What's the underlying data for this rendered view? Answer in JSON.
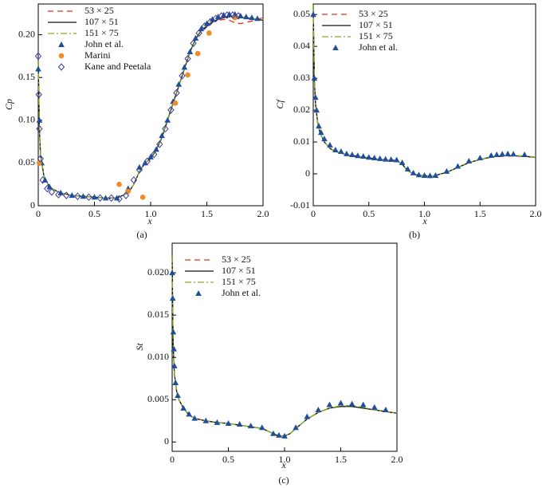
{
  "chart_data": [
    {
      "type": "line",
      "caption": "(a)",
      "x_label": "x",
      "y_label": "Cp",
      "xlim": [
        0,
        2
      ],
      "ylim": [
        0,
        0.236
      ],
      "xticks": [
        0,
        0.5,
        {
          "value": 1,
          "label": "1.0"
        },
        1.5,
        {
          "value": 2,
          "label": "2.0"
        }
      ],
      "yticks": [
        0,
        0.05,
        {
          "value": 0.1,
          "label": "0.10"
        },
        0.15,
        {
          "value": 0.2,
          "label": "0.20"
        }
      ],
      "x": [
        0,
        0.01,
        0.02,
        0.05,
        0.1,
        0.15,
        0.2,
        0.3,
        0.4,
        0.5,
        0.6,
        0.7,
        0.8,
        0.85,
        0.9,
        0.95,
        1.0,
        1.05,
        1.1,
        1.15,
        1.2,
        1.25,
        1.3,
        1.35,
        1.4,
        1.45,
        1.5,
        1.55,
        1.6,
        1.65,
        1.7,
        1.75,
        1.8,
        1.9,
        2.0
      ],
      "series": [
        {
          "name": "53 × 25",
          "color": "#e0302a",
          "dash": "dashed",
          "values": [
            0.17,
            0.09,
            0.06,
            0.035,
            0.022,
            0.018,
            0.015,
            0.012,
            0.011,
            0.01,
            0.009,
            0.009,
            0.015,
            0.025,
            0.04,
            0.05,
            0.055,
            0.065,
            0.08,
            0.1,
            0.12,
            0.14,
            0.16,
            0.18,
            0.195,
            0.205,
            0.21,
            0.215,
            0.217,
            0.218,
            0.217,
            0.214,
            0.213,
            0.216,
            0.22
          ]
        },
        {
          "name": "107 × 51",
          "color": "#111111",
          "dash": "solid",
          "values": [
            0.17,
            0.09,
            0.06,
            0.035,
            0.022,
            0.018,
            0.015,
            0.012,
            0.011,
            0.01,
            0.009,
            0.009,
            0.015,
            0.025,
            0.04,
            0.05,
            0.055,
            0.065,
            0.08,
            0.1,
            0.12,
            0.14,
            0.16,
            0.18,
            0.195,
            0.205,
            0.21,
            0.215,
            0.218,
            0.22,
            0.221,
            0.222,
            0.221,
            0.219,
            0.217
          ]
        },
        {
          "name": "151 × 75",
          "color": "#7ab51d",
          "dash": "dashdot",
          "values": [
            0.17,
            0.09,
            0.06,
            0.035,
            0.022,
            0.018,
            0.015,
            0.012,
            0.011,
            0.01,
            0.009,
            0.009,
            0.015,
            0.025,
            0.04,
            0.05,
            0.056,
            0.066,
            0.081,
            0.101,
            0.121,
            0.141,
            0.161,
            0.181,
            0.196,
            0.206,
            0.211,
            0.216,
            0.219,
            0.221,
            0.222,
            0.222,
            0.221,
            0.219,
            0.218
          ]
        },
        {
          "name": "John et al.",
          "color": "#1f4e9c",
          "marker": "triangle",
          "x": [
            0,
            0.01,
            0.03,
            0.06,
            0.1,
            0.2,
            0.3,
            0.4,
            0.5,
            0.6,
            0.7,
            0.8,
            0.9,
            0.95,
            1.0,
            1.05,
            1.1,
            1.15,
            1.2,
            1.25,
            1.3,
            1.35,
            1.4,
            1.45,
            1.5,
            1.55,
            1.6,
            1.65,
            1.7,
            1.75,
            1.8,
            1.85,
            1.9,
            1.95
          ],
          "values": [
            0.16,
            0.1,
            0.05,
            0.03,
            0.022,
            0.015,
            0.012,
            0.011,
            0.01,
            0.009,
            0.009,
            0.02,
            0.045,
            0.05,
            0.057,
            0.066,
            0.082,
            0.1,
            0.122,
            0.142,
            0.162,
            0.18,
            0.196,
            0.207,
            0.213,
            0.218,
            0.221,
            0.223,
            0.224,
            0.224,
            0.222,
            0.221,
            0.22,
            0.219
          ]
        },
        {
          "name": "Marini",
          "color": "#f08a24",
          "marker": "circle",
          "x": [
            0.01,
            0.72,
            0.8,
            0.93,
            1.22,
            1.33,
            1.42,
            1.52,
            1.75
          ],
          "values": [
            0.05,
            0.025,
            0.017,
            0.01,
            0.12,
            0.153,
            0.178,
            0.202,
            0.22
          ]
        },
        {
          "name": "Kane and Peetala",
          "color": "#3a3a9c",
          "marker": "diamond",
          "x": [
            0,
            0.005,
            0.01,
            0.02,
            0.04,
            0.08,
            0.12,
            0.18,
            0.25,
            0.35,
            0.45,
            0.55,
            0.65,
            0.72,
            0.78,
            0.85,
            0.9,
            0.97,
            1.03,
            1.08,
            1.13,
            1.18,
            1.23,
            1.28,
            1.33,
            1.38,
            1.43,
            1.48,
            1.53,
            1.58,
            1.63,
            1.68,
            1.73,
            1.78
          ],
          "values": [
            0.175,
            0.13,
            0.09,
            0.055,
            0.03,
            0.02,
            0.016,
            0.013,
            0.012,
            0.011,
            0.01,
            0.009,
            0.009,
            0.008,
            0.012,
            0.03,
            0.042,
            0.052,
            0.06,
            0.072,
            0.09,
            0.112,
            0.132,
            0.152,
            0.172,
            0.19,
            0.202,
            0.21,
            0.215,
            0.219,
            0.222,
            0.223,
            0.223,
            0.222
          ]
        }
      ]
    },
    {
      "type": "line",
      "caption": "(b)",
      "x_label": "x",
      "y_label": "Cf",
      "xlim": [
        0,
        2
      ],
      "ylim": [
        -0.01,
        0.0533
      ],
      "xticks": [
        0,
        0.5,
        {
          "value": 1,
          "label": "1.0"
        },
        1.5,
        {
          "value": 2,
          "label": "2.0"
        }
      ],
      "yticks": [
        -0.01,
        0,
        0.01,
        0.02,
        0.03,
        0.04,
        0.05
      ],
      "x": [
        0,
        0.005,
        0.01,
        0.02,
        0.04,
        0.06,
        0.1,
        0.15,
        0.2,
        0.3,
        0.4,
        0.5,
        0.6,
        0.7,
        0.75,
        0.8,
        0.85,
        0.9,
        0.95,
        1.0,
        1.05,
        1.1,
        1.2,
        1.3,
        1.4,
        1.5,
        1.6,
        1.7,
        1.8,
        1.9,
        2.0
      ],
      "series": [
        {
          "name": "53 × 25",
          "color": "#e0302a",
          "dash": "dashed",
          "values": [
            0.053,
            0.04,
            0.03,
            0.022,
            0.016,
            0.013,
            0.01,
            0.008,
            0.007,
            0.006,
            0.0055,
            0.005,
            0.0045,
            0.0043,
            0.0042,
            0.003,
            0.001,
            0,
            -0.0005,
            -0.0005,
            -0.0008,
            -0.0005,
            0.0005,
            0.002,
            0.0035,
            0.0045,
            0.0052,
            0.0055,
            0.0056,
            0.0055,
            0.0052
          ]
        },
        {
          "name": "107 × 51",
          "color": "#111111",
          "dash": "solid",
          "values": [
            0.053,
            0.04,
            0.03,
            0.022,
            0.016,
            0.013,
            0.01,
            0.008,
            0.007,
            0.006,
            0.0055,
            0.005,
            0.0045,
            0.0043,
            0.0042,
            0.003,
            0.001,
            0,
            -0.0005,
            -0.0005,
            -0.0008,
            -0.0005,
            0.0005,
            0.002,
            0.0035,
            0.0045,
            0.0053,
            0.0057,
            0.0057,
            0.0055,
            0.0052
          ]
        },
        {
          "name": "151 × 75",
          "color": "#7ab51d",
          "dash": "dashdot",
          "values": [
            0.053,
            0.04,
            0.03,
            0.022,
            0.016,
            0.013,
            0.01,
            0.008,
            0.007,
            0.006,
            0.0055,
            0.005,
            0.0045,
            0.0043,
            0.0042,
            0.003,
            0.001,
            0,
            -0.0005,
            -0.0005,
            -0.0008,
            -0.0005,
            0.0005,
            0.002,
            0.0035,
            0.0045,
            0.0053,
            0.0057,
            0.0058,
            0.0056,
            0.0053
          ]
        },
        {
          "name": "John et al.",
          "color": "#1f4e9c",
          "marker": "triangle",
          "x": [
            0,
            0.01,
            0.02,
            0.03,
            0.05,
            0.07,
            0.1,
            0.15,
            0.2,
            0.25,
            0.3,
            0.35,
            0.4,
            0.45,
            0.5,
            0.55,
            0.6,
            0.65,
            0.7,
            0.75,
            0.8,
            0.85,
            0.9,
            0.95,
            1.0,
            1.05,
            1.1,
            1.2,
            1.3,
            1.4,
            1.5,
            1.6,
            1.65,
            1.7,
            1.75,
            1.8,
            1.9
          ],
          "values": [
            0.05,
            0.03,
            0.024,
            0.02,
            0.015,
            0.013,
            0.011,
            0.009,
            0.0075,
            0.007,
            0.0063,
            0.006,
            0.0057,
            0.0055,
            0.0052,
            0.005,
            0.0048,
            0.0046,
            0.0045,
            0.0044,
            0.0035,
            0.0015,
            0.0003,
            -0.0003,
            -0.0005,
            -0.0006,
            -0.0005,
            0.0008,
            0.0024,
            0.004,
            0.005,
            0.0058,
            0.006,
            0.0062,
            0.0063,
            0.0062,
            0.006
          ]
        }
      ]
    },
    {
      "type": "line",
      "caption": "(c)",
      "x_label": "x",
      "y_label": "St",
      "xlim": [
        0,
        2
      ],
      "ylim": [
        -0.0011,
        0.0235
      ],
      "xticks": [
        0,
        0.5,
        {
          "value": 1,
          "label": "1.0"
        },
        1.5,
        {
          "value": 2,
          "label": "2.0"
        }
      ],
      "yticks": [
        0,
        0.005,
        {
          "value": 0.01,
          "label": "0.010"
        },
        0.015,
        {
          "value": 0.02,
          "label": "0.020"
        }
      ],
      "x": [
        0,
        0.005,
        0.01,
        0.02,
        0.04,
        0.06,
        0.1,
        0.15,
        0.2,
        0.3,
        0.4,
        0.5,
        0.6,
        0.7,
        0.8,
        0.85,
        0.9,
        0.95,
        1.0,
        1.05,
        1.1,
        1.2,
        1.3,
        1.4,
        1.5,
        1.6,
        1.7,
        1.8,
        1.9,
        2.0
      ],
      "series": [
        {
          "name": "53 × 25",
          "color": "#e0302a",
          "dash": "dashed",
          "values": [
            0.022,
            0.015,
            0.011,
            0.008,
            0.006,
            0.005,
            0.004,
            0.0032,
            0.0028,
            0.0025,
            0.0023,
            0.0022,
            0.002,
            0.0018,
            0.0016,
            0.0013,
            0.001,
            0.0007,
            0.0007,
            0.001,
            0.0016,
            0.0027,
            0.0035,
            0.004,
            0.0042,
            0.0042,
            0.004,
            0.0038,
            0.0036,
            0.0034
          ]
        },
        {
          "name": "107 × 51",
          "color": "#111111",
          "dash": "solid",
          "values": [
            0.022,
            0.015,
            0.011,
            0.008,
            0.006,
            0.005,
            0.004,
            0.0032,
            0.0028,
            0.0025,
            0.0023,
            0.0022,
            0.002,
            0.0018,
            0.0016,
            0.0013,
            0.001,
            0.0007,
            0.0007,
            0.001,
            0.0016,
            0.0027,
            0.0035,
            0.004,
            0.0042,
            0.0042,
            0.004,
            0.0038,
            0.0036,
            0.0034
          ]
        },
        {
          "name": "151 × 75",
          "color": "#7ab51d",
          "dash": "dashdot",
          "values": [
            0.022,
            0.015,
            0.011,
            0.008,
            0.006,
            0.005,
            0.004,
            0.0032,
            0.0028,
            0.0025,
            0.0023,
            0.0022,
            0.002,
            0.0018,
            0.0016,
            0.0013,
            0.001,
            0.0007,
            0.0007,
            0.001,
            0.0016,
            0.0027,
            0.0035,
            0.004,
            0.0043,
            0.0043,
            0.0041,
            0.0038,
            0.0036,
            0.0034
          ]
        },
        {
          "name": "John et al.",
          "color": "#1f4e9c",
          "marker": "triangle",
          "x": [
            0,
            0.005,
            0.01,
            0.015,
            0.02,
            0.03,
            0.05,
            0.1,
            0.15,
            0.2,
            0.3,
            0.4,
            0.5,
            0.6,
            0.7,
            0.8,
            0.9,
            0.95,
            1.0,
            1.1,
            1.2,
            1.3,
            1.4,
            1.5,
            1.6,
            1.7,
            1.8,
            1.9
          ],
          "values": [
            0.02,
            0.017,
            0.013,
            0.011,
            0.009,
            0.007,
            0.0055,
            0.004,
            0.0033,
            0.0028,
            0.0025,
            0.0023,
            0.0022,
            0.0021,
            0.0019,
            0.0017,
            0.001,
            0.0008,
            0.0007,
            0.0017,
            0.003,
            0.0038,
            0.0044,
            0.0046,
            0.0045,
            0.0044,
            0.0041,
            0.0038
          ]
        }
      ]
    }
  ]
}
